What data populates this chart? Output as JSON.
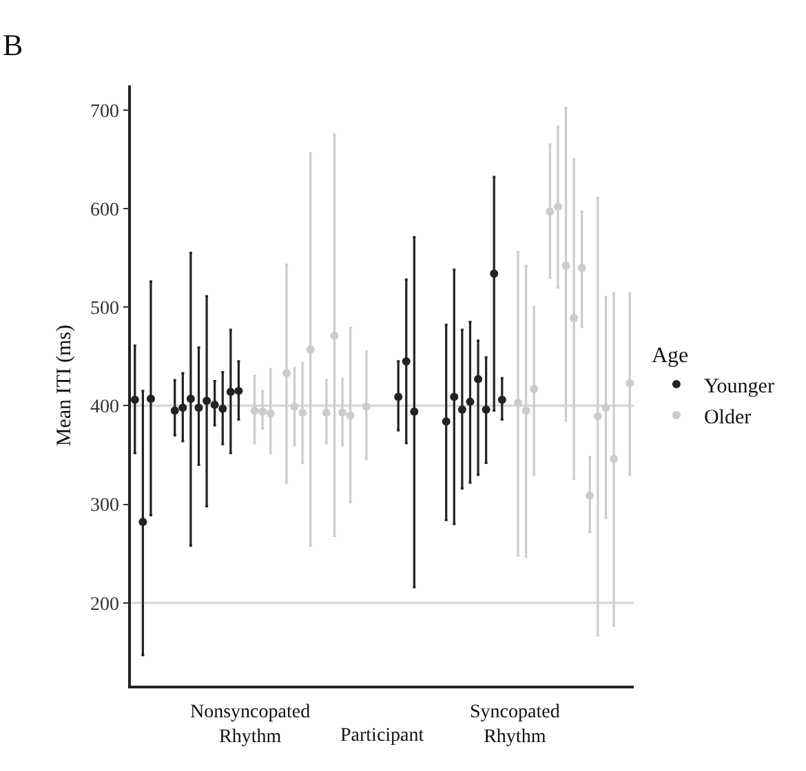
{
  "chart_data": {
    "type": "scatter",
    "ylabel": "Mean ITI (ms)",
    "xlabel": "Participant",
    "legend_title": "Age",
    "annotations": [
      "B",
      "Nonsyncopated Rhythm",
      "Syncopated Rhythm"
    ],
    "categories": [
      null,
      null,
      null,
      null,
      null,
      null,
      null,
      null,
      null,
      null,
      null,
      null,
      null,
      null,
      null,
      null,
      null,
      null,
      null,
      null,
      null,
      null,
      null,
      null,
      null,
      null,
      null,
      null,
      null,
      null,
      null,
      null,
      null,
      null,
      null,
      null,
      null,
      null,
      null,
      null,
      null,
      null,
      null,
      null,
      null,
      null,
      null,
      null,
      null,
      null,
      null,
      null,
      null,
      null,
      null,
      null,
      null,
      null,
      null,
      null,
      null,
      null,
      null
    ],
    "series": [
      {
        "name": "Younger",
        "color": "#222222",
        "values": [
          406,
          282,
          407,
          null,
          null,
          395,
          398,
          407,
          398,
          405,
          401,
          397,
          414,
          415,
          null,
          null,
          null,
          null,
          null,
          null,
          null,
          null,
          null,
          null,
          null,
          null,
          null,
          null,
          null,
          null,
          null,
          null,
          null,
          409,
          445,
          394,
          null,
          null,
          null,
          384,
          409,
          396,
          404,
          427,
          396,
          534,
          406,
          null,
          null,
          null,
          null,
          null,
          null,
          null,
          null,
          null,
          null,
          null,
          null,
          null,
          null,
          null,
          null
        ],
        "errors": [
          [
            352,
            461
          ],
          [
            147,
            415
          ],
          [
            289,
            526
          ],
          null,
          null,
          [
            370,
            426
          ],
          [
            364,
            433
          ],
          [
            258,
            555
          ],
          [
            340,
            459
          ],
          [
            298,
            511
          ],
          [
            380,
            425
          ],
          [
            361,
            434
          ],
          [
            352,
            477
          ],
          [
            386,
            445
          ],
          null,
          null,
          null,
          null,
          null,
          null,
          null,
          null,
          null,
          null,
          null,
          null,
          null,
          null,
          null,
          null,
          null,
          null,
          null,
          [
            375,
            445
          ],
          [
            362,
            528
          ],
          [
            216,
            571
          ],
          null,
          null,
          null,
          [
            284,
            482
          ],
          [
            280,
            538
          ],
          [
            316,
            477
          ],
          [
            322,
            485
          ],
          [
            330,
            466
          ],
          [
            342,
            449
          ],
          [
            395,
            632
          ],
          [
            386,
            428
          ],
          null,
          null,
          null,
          null,
          null,
          null,
          null,
          null,
          null,
          null,
          null,
          null,
          null,
          null,
          null,
          null
        ]
      },
      {
        "name": "Older",
        "color": "#cccccc",
        "values": [
          null,
          null,
          null,
          null,
          null,
          null,
          null,
          null,
          null,
          null,
          null,
          null,
          null,
          null,
          null,
          395,
          394,
          392,
          null,
          433,
          399,
          393,
          457,
          null,
          393,
          471,
          393,
          390,
          null,
          399,
          null,
          null,
          null,
          null,
          null,
          null,
          null,
          null,
          null,
          null,
          null,
          null,
          null,
          null,
          null,
          null,
          null,
          null,
          403,
          395,
          417,
          null,
          597,
          602,
          542,
          489,
          540,
          309,
          389,
          398,
          346,
          null,
          423
        ],
        "errors": [
          null,
          null,
          null,
          null,
          null,
          null,
          null,
          null,
          null,
          null,
          null,
          null,
          null,
          null,
          null,
          [
            362,
            430
          ],
          [
            377,
            415
          ],
          [
            352,
            437
          ],
          null,
          [
            322,
            543
          ],
          [
            360,
            438
          ],
          [
            342,
            443
          ],
          [
            258,
            656
          ],
          null,
          [
            362,
            426
          ],
          [
            268,
            675
          ],
          [
            360,
            427
          ],
          [
            302,
            479
          ],
          null,
          [
            346,
            455
          ],
          null,
          null,
          null,
          null,
          null,
          null,
          null,
          null,
          null,
          null,
          null,
          null,
          null,
          null,
          null,
          null,
          null,
          null,
          [
            248,
            556
          ],
          [
            247,
            542
          ],
          [
            330,
            500
          ],
          null,
          [
            530,
            665
          ],
          [
            520,
            683
          ],
          [
            385,
            702
          ],
          [
            326,
            650
          ],
          [
            480,
            597
          ],
          [
            272,
            348
          ],
          [
            167,
            611
          ],
          [
            286,
            510
          ],
          [
            177,
            514
          ],
          null,
          [
            330,
            514
          ]
        ]
      }
    ],
    "ylim": [
      116,
      725
    ],
    "yticks": [
      200,
      300,
      400,
      500,
      600,
      700
    ],
    "ref_lines": [
      {
        "axis": "y",
        "value": 200,
        "color": "#d4d4d4"
      },
      {
        "axis": "y",
        "value": 400,
        "color": "#d4d4d4"
      }
    ],
    "marker": "circle",
    "grid": false,
    "legend": "right",
    "tick_labels": "y"
  }
}
